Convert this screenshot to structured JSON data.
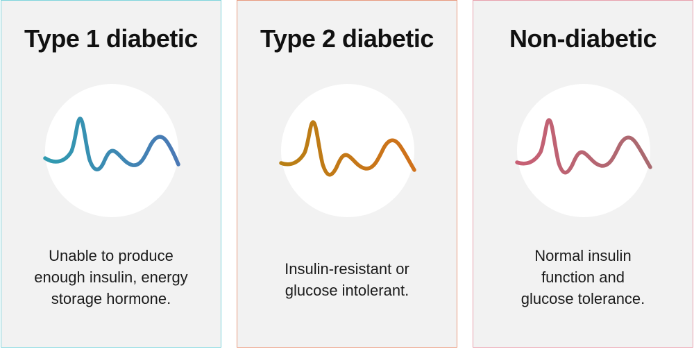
{
  "panels": [
    {
      "title": "Type 1 diabetic",
      "description_lines": [
        "Unable to produce",
        "enough insulin, energy",
        "storage hormone."
      ],
      "border_color": "#7fd4dc",
      "wave_color_start": "#2f9bb0",
      "wave_color_end": "#4a78b5",
      "wave_icon": "glucose-wave-icon"
    },
    {
      "title": "Type 2 diabetic",
      "description_lines": [
        "Insulin-resistant or",
        "glucose intolerant."
      ],
      "border_color": "#e89a7e",
      "wave_color_start": "#b87f14",
      "wave_color_end": "#d0711b",
      "wave_icon": "glucose-wave-icon"
    },
    {
      "title": "Non-diabetic",
      "description_lines": [
        "Normal insulin",
        "function and",
        "glucose tolerance."
      ],
      "border_color": "#e8a0ad",
      "wave_color_start": "#c85f74",
      "wave_color_end": "#a96a70",
      "wave_icon": "glucose-wave-icon"
    }
  ]
}
